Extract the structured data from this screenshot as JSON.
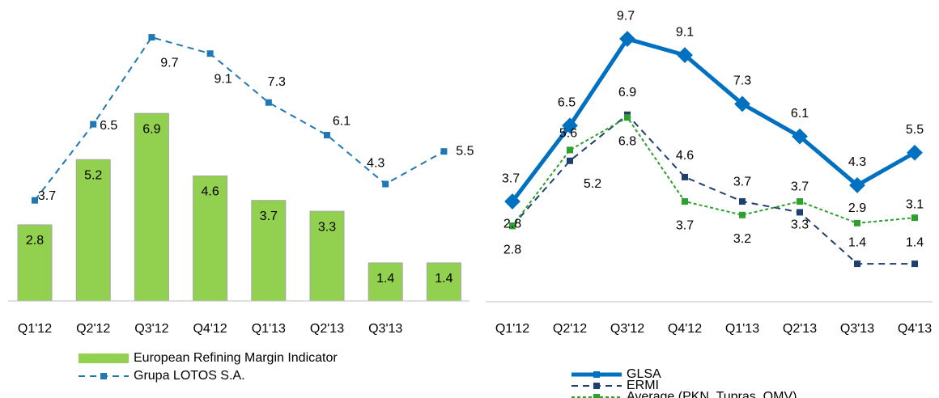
{
  "chart_data": [
    {
      "type": "bar",
      "categories": [
        "Q1'12",
        "Q2'12",
        "Q3'12",
        "Q4'12",
        "Q1'13",
        "Q2'13",
        "Q3'13",
        null
      ],
      "series": [
        {
          "name": "European Refining Margin Indicator",
          "type": "bar",
          "color": "#92d050",
          "values": [
            2.8,
            5.2,
            6.9,
            4.6,
            3.7,
            3.3,
            1.4,
            1.4
          ]
        },
        {
          "name": "Grupa LOTOS S.A.",
          "type": "line",
          "dash": true,
          "color": "#1f77b4",
          "values": [
            3.7,
            6.5,
            9.7,
            9.1,
            7.3,
            6.1,
            4.3,
            5.5
          ]
        }
      ]
    },
    {
      "type": "line",
      "categories": [
        "Q1'12",
        "Q2'12",
        "Q3'12",
        "Q4'12",
        "Q1'13",
        "Q2'13",
        "Q3'13",
        "Q4'13"
      ],
      "series": [
        {
          "name": "GLSA",
          "type": "line",
          "dash": false,
          "color": "#0070c0",
          "values": [
            3.7,
            6.5,
            9.7,
            9.1,
            7.3,
            6.1,
            4.3,
            5.5
          ]
        },
        {
          "name": "ERMI",
          "type": "line",
          "dash": true,
          "color": "#1f3f6e",
          "values": [
            2.8,
            5.2,
            6.9,
            4.6,
            3.7,
            3.3,
            1.4,
            1.4
          ]
        },
        {
          "name": "Average (PKN, Tupras, OMV)",
          "type": "line",
          "dash": true,
          "color": "#2ea02e",
          "values": [
            2.8,
            5.6,
            6.8,
            3.7,
            3.2,
            3.7,
            2.9,
            3.1
          ]
        }
      ]
    }
  ]
}
